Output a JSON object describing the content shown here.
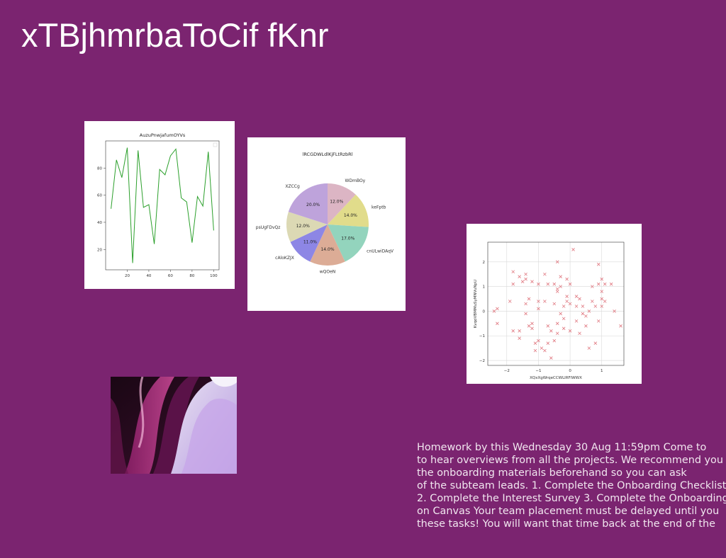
{
  "page": {
    "title": "xTBjhmrbaToCif fKnr",
    "paragraph_lines": [
      "Homework by this Wednesday 30 Aug 11:59pm Come to",
      "to hear overviews from all the projects. We recommend you",
      "the onboarding materials beforehand so you can ask",
      "of the subteam leads. 1. Complete the Onboarding Checklist,",
      "2. Complete the Interest Survey 3. Complete the Onboarding",
      "on Canvas Your team placement must be delayed until you",
      "these tasks! You will want that time back at the end of the"
    ]
  },
  "chart_data": [
    {
      "type": "line",
      "title": "AuzuPnwjafumOYVs",
      "xlabel": "",
      "ylabel": "",
      "xlim": [
        0,
        105
      ],
      "ylim": [
        5,
        100
      ],
      "xticks": [
        20,
        40,
        60,
        80,
        100
      ],
      "yticks": [
        20,
        40,
        60,
        80
      ],
      "color": "#2ca02c",
      "grid": false,
      "x": [
        5,
        10,
        15,
        20,
        25,
        30,
        35,
        40,
        45,
        50,
        55,
        60,
        65,
        70,
        75,
        80,
        85,
        90,
        95,
        100
      ],
      "y": [
        50,
        86,
        73,
        95,
        10,
        93,
        51,
        53,
        24,
        79,
        75,
        89,
        94,
        58,
        55,
        25,
        59,
        52,
        92,
        34
      ]
    },
    {
      "type": "pie",
      "title": "lRCGDWLdlKjFLtRzbRl",
      "slices": [
        {
          "label": "WDmBOy",
          "value": 12.0,
          "pct": "12.0%",
          "color": "#dcb5c4"
        },
        {
          "label": "keFptb",
          "value": 14.0,
          "pct": "14.0%",
          "color": "#e1dc8b"
        },
        {
          "label": "cnULwiDAqV",
          "value": 17.0,
          "pct": "17.0%",
          "color": "#93d4bd"
        },
        {
          "label": "wQOeN",
          "value": 14.0,
          "pct": "14.0%",
          "color": "#dcac96"
        },
        {
          "label": "cAloKZJX",
          "value": 11.0,
          "pct": "11.0%",
          "color": "#8d86e5"
        },
        {
          "label": "psUgFDvQz",
          "value": 12.0,
          "pct": "12.0%",
          "color": "#dcd9b4"
        },
        {
          "label": "XZCCg",
          "value": 20.0,
          "pct": "20.0%",
          "color": "#bea3db"
        }
      ]
    },
    {
      "type": "scatter",
      "title": "",
      "xlabel": "XQxXgWrqeCCWLlRFlWWX",
      "ylabel": "KvqoVBMMuSyMNVuNpU",
      "xlim": [
        -2.6,
        1.7
      ],
      "ylim": [
        -2.2,
        2.8
      ],
      "xticks": [
        -2,
        -1,
        0,
        1
      ],
      "yticks": [
        -2,
        -1,
        0,
        1,
        2
      ],
      "color": "#e07880",
      "marker": "x",
      "grid": true,
      "points": [
        [
          -2.4,
          0.0
        ],
        [
          -2.3,
          0.1
        ],
        [
          -2.3,
          -0.5
        ],
        [
          -1.9,
          0.4
        ],
        [
          -1.8,
          1.6
        ],
        [
          -1.8,
          1.1
        ],
        [
          -1.8,
          -0.8
        ],
        [
          -1.6,
          1.4
        ],
        [
          -1.6,
          -0.8
        ],
        [
          -1.6,
          -1.1
        ],
        [
          -1.5,
          1.2
        ],
        [
          -1.4,
          1.3
        ],
        [
          -1.4,
          1.5
        ],
        [
          -1.4,
          0.3
        ],
        [
          -1.4,
          -0.1
        ],
        [
          -1.3,
          0.5
        ],
        [
          -1.3,
          -0.6
        ],
        [
          -1.2,
          1.2
        ],
        [
          -1.2,
          -0.5
        ],
        [
          -1.2,
          -0.7
        ],
        [
          -1.1,
          -1.3
        ],
        [
          -1.1,
          -1.6
        ],
        [
          -1.0,
          0.4
        ],
        [
          -1.0,
          0.1
        ],
        [
          -1.0,
          1.1
        ],
        [
          -1.0,
          -1.2
        ],
        [
          -0.9,
          -1.5
        ],
        [
          -0.8,
          1.5
        ],
        [
          -0.8,
          0.4
        ],
        [
          -0.8,
          -1.6
        ],
        [
          -0.7,
          1.1
        ],
        [
          -0.7,
          -1.3
        ],
        [
          -0.7,
          -0.6
        ],
        [
          -0.6,
          -0.8
        ],
        [
          -0.6,
          -1.9
        ],
        [
          -0.5,
          1.1
        ],
        [
          -0.5,
          0.3
        ],
        [
          -0.5,
          -1.2
        ],
        [
          -0.4,
          2.0
        ],
        [
          -0.4,
          0.9
        ],
        [
          -0.4,
          0.8
        ],
        [
          -0.4,
          -0.5
        ],
        [
          -0.4,
          -0.9
        ],
        [
          -0.3,
          1.4
        ],
        [
          -0.3,
          1.0
        ],
        [
          -0.3,
          -0.1
        ],
        [
          -0.2,
          0.2
        ],
        [
          -0.2,
          -0.3
        ],
        [
          -0.2,
          -0.7
        ],
        [
          -0.1,
          0.4
        ],
        [
          -0.1,
          0.6
        ],
        [
          0.0,
          0.3
        ],
        [
          0.0,
          1.1
        ],
        [
          0.1,
          2.5
        ],
        [
          0.2,
          0.6
        ],
        [
          0.2,
          0.2
        ],
        [
          0.2,
          -0.4
        ],
        [
          0.3,
          -0.9
        ],
        [
          0.4,
          0.2
        ],
        [
          0.4,
          -0.1
        ],
        [
          0.5,
          -0.2
        ],
        [
          0.5,
          -0.6
        ],
        [
          0.6,
          0.0
        ],
        [
          0.6,
          -1.5
        ],
        [
          0.7,
          0.4
        ],
        [
          0.7,
          1.0
        ],
        [
          0.8,
          0.2
        ],
        [
          0.8,
          -1.3
        ],
        [
          0.9,
          1.9
        ],
        [
          0.9,
          1.1
        ],
        [
          0.9,
          -0.4
        ],
        [
          1.0,
          0.5
        ],
        [
          1.0,
          0.8
        ],
        [
          1.0,
          0.2
        ],
        [
          1.1,
          1.1
        ],
        [
          1.1,
          0.4
        ],
        [
          1.3,
          1.1
        ],
        [
          1.4,
          0.0
        ],
        [
          1.6,
          -0.6
        ],
        [
          0.0,
          -0.8
        ],
        [
          -0.1,
          1.3
        ],
        [
          0.3,
          0.5
        ],
        [
          1.0,
          1.3
        ]
      ]
    }
  ],
  "art": {
    "description_colors": [
      "#2a0a22",
      "#8e1f6a",
      "#c7a6e8",
      "#e9e3f3",
      "#d04b9a"
    ]
  }
}
